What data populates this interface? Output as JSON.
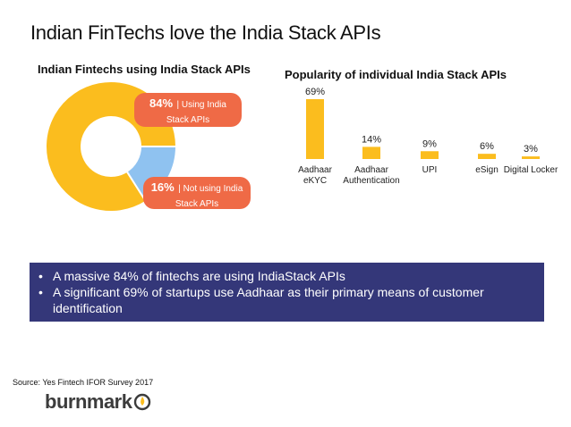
{
  "title": "Indian FinTechs love the India Stack APIs",
  "chart_data": [
    {
      "type": "pie",
      "title": "Indian Fintechs using India Stack APIs",
      "categories": [
        "Using India Stack APIs",
        "Not using India Stack APIs"
      ],
      "values": [
        84,
        16
      ],
      "colors": [
        "#fbbd1e",
        "#8fc2f0"
      ],
      "donut": true,
      "labels": [
        {
          "pct": "84%",
          "text": "| Using India Stack APIs"
        },
        {
          "pct": "16%",
          "text": "| Not using India Stack APIs"
        }
      ]
    },
    {
      "type": "bar",
      "title": "Popularity of individual India Stack APIs",
      "categories": [
        "Aadhaar eKYC",
        "Aadhaar Authentication",
        "UPI",
        "eSign",
        "Digital Locker"
      ],
      "category_lines": [
        [
          "Aadhaar",
          "eKYC"
        ],
        [
          "Aadhaar",
          "Authentication"
        ],
        [
          "UPI"
        ],
        [
          "eSign"
        ],
        [
          "Digital Locker"
        ]
      ],
      "values": [
        69,
        14,
        9,
        6,
        3
      ],
      "data_labels": [
        "69%",
        "14%",
        "9%",
        "6%",
        "3%"
      ],
      "color": "#fbbd1e",
      "ylim": [
        0,
        69
      ]
    }
  ],
  "summary": {
    "bullets": [
      "A massive 84% of fintechs are using IndiaStack APIs",
      "A significant 69% of startups use Aadhaar as their primary means of customer identification"
    ],
    "background": "#343779"
  },
  "source": "Source: Yes Fintech IFOR Survey 2017",
  "logo": {
    "text": "burnmark",
    "icon": "flame-circle-icon",
    "accent": "#fbbd1e"
  }
}
